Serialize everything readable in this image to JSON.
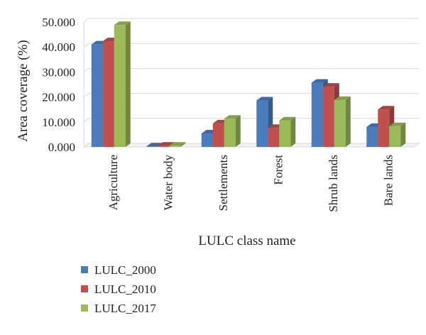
{
  "chart_data": {
    "type": "bar",
    "title": "",
    "xlabel": "LULC class name",
    "ylabel": "Area coverage (%)",
    "ylim": [
      0,
      50
    ],
    "yticks": [
      "0.000",
      "10.000",
      "20.000",
      "30.000",
      "40.000",
      "50.000"
    ],
    "grid": true,
    "style": "3d-clustered-column",
    "legend_position": "bottom-left",
    "categories": [
      "Agriculture",
      "Water body",
      "Settlements",
      "Forest",
      "Shrub lands",
      "Bare lands"
    ],
    "series": [
      {
        "name": "LULC_2000",
        "color": "#4a7bbd",
        "values": [
          41.0,
          0.2,
          5.4,
          18.6,
          25.7,
          8.0
        ]
      },
      {
        "name": "LULC_2010",
        "color": "#c0504d",
        "values": [
          42.3,
          0.5,
          9.4,
          7.6,
          24.1,
          15.0
        ]
      },
      {
        "name": "LULC_2017",
        "color": "#9bbb59",
        "values": [
          48.8,
          0.5,
          11.3,
          10.6,
          18.8,
          8.3
        ]
      }
    ]
  }
}
